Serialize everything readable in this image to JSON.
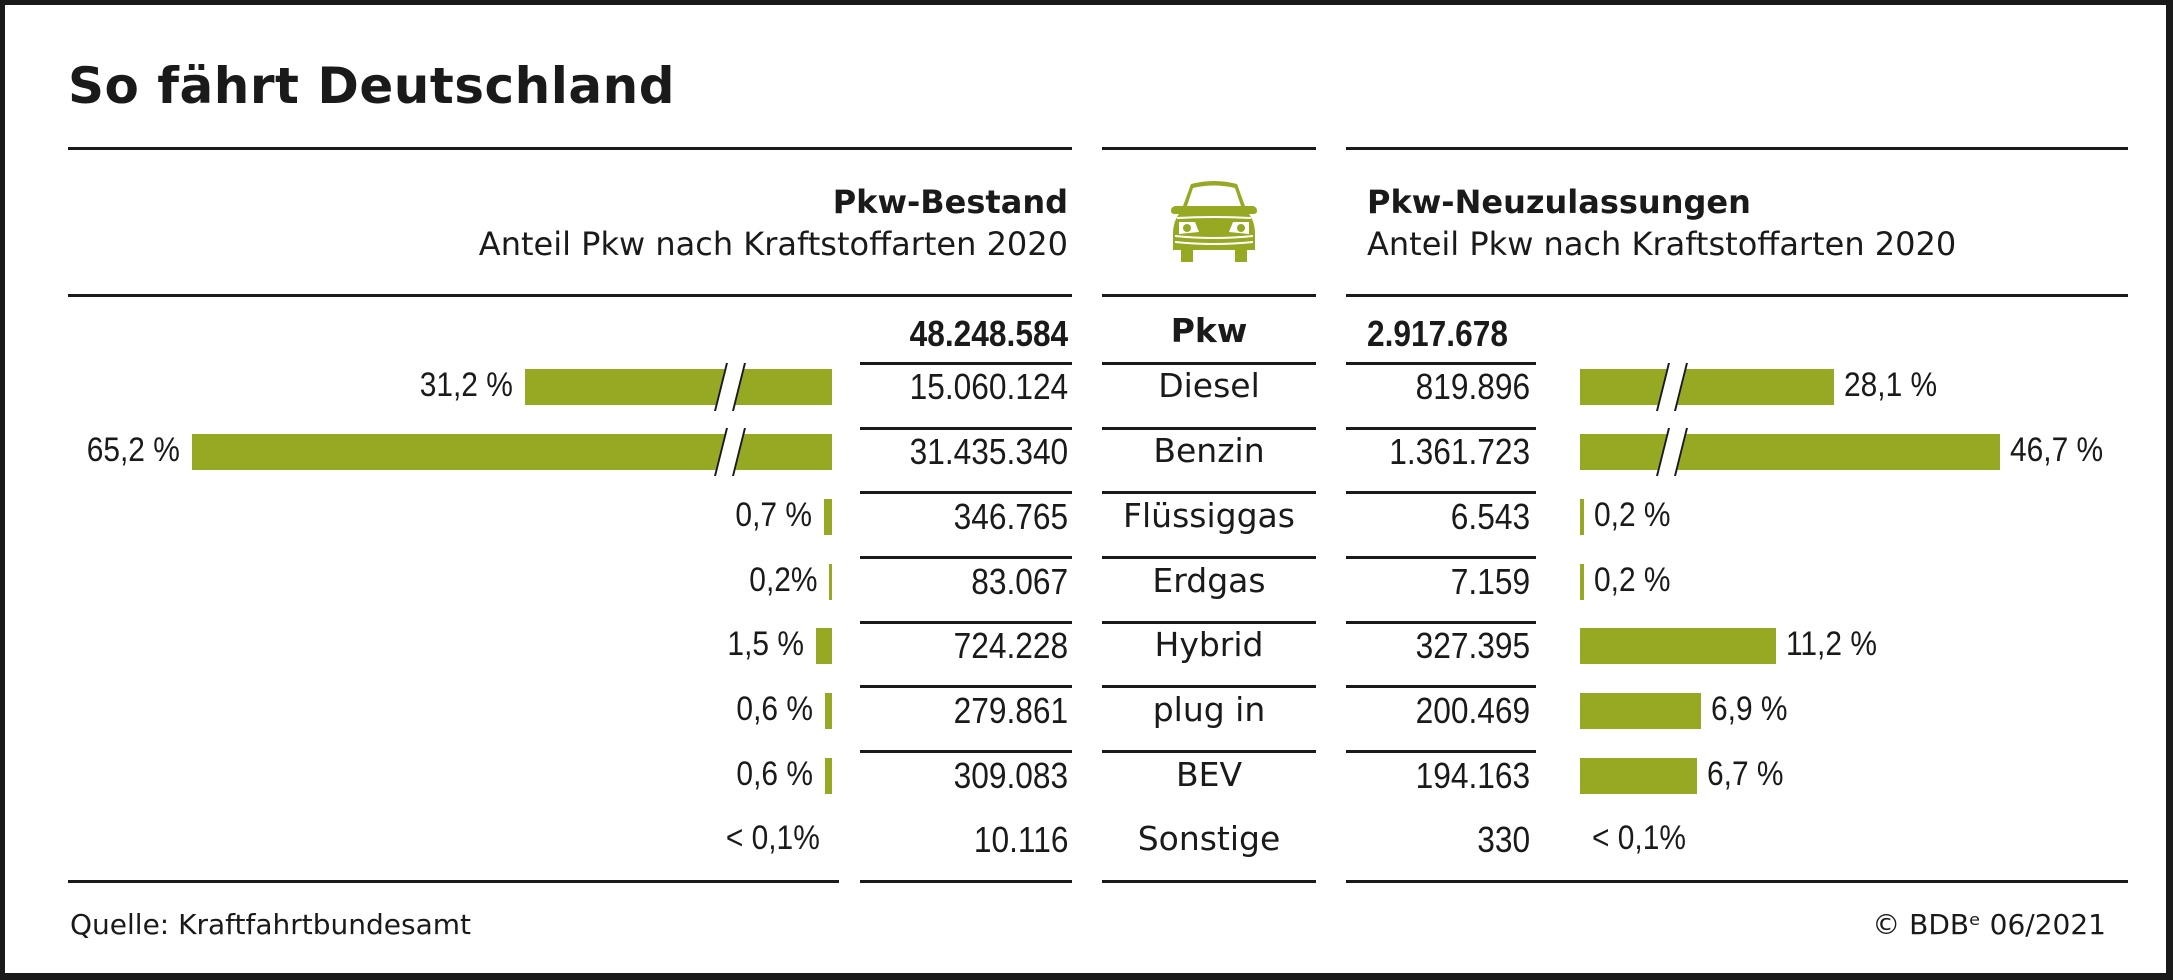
{
  "title": "So fährt Deutschland",
  "left_header": {
    "title": "Pkw-Bestand",
    "subtitle": "Anteil Pkw nach Kraftstoffarten 2020"
  },
  "right_header": {
    "title": "Pkw-Neuzulassungen",
    "subtitle": "Anteil Pkw nach Kraftstoffarten 2020"
  },
  "center_icon": "car-front-icon",
  "colors": {
    "bar": "#97a823",
    "text": "#1a1a1a",
    "frame": "#1a1a1a"
  },
  "footer": {
    "source": "Quelle: Kraftfahrtbundesamt",
    "copyright": "© BDBᵉ 06/2021"
  },
  "chart_data": {
    "type": "bar",
    "title": "So fährt Deutschland",
    "layout": "butterfly (left: Pkw-Bestand, right: Pkw-Neuzulassungen)",
    "total": {
      "label": "Pkw",
      "bestand": "48.248.584",
      "neuzulassungen": "2.917.678"
    },
    "categories": [
      "Diesel",
      "Benzin",
      "Flüssiggas",
      "Erdgas",
      "Hybrid",
      "plug in",
      "BEV",
      "Sonstige"
    ],
    "series": [
      {
        "name": "Pkw-Bestand",
        "side": "left",
        "counts": [
          "15.060.124",
          "31.435.340",
          "346.765",
          "83.067",
          "724.228",
          "279.861",
          "309.083",
          "10.116"
        ],
        "values": [
          31.2,
          65.2,
          0.7,
          0.2,
          1.5,
          0.6,
          0.6,
          0.05
        ],
        "labels": [
          "31,2 %",
          "65,2 %",
          "0,7 %",
          "0,2%",
          "1,5 %",
          "0,6 %",
          "0,6 %",
          "< 0,1%"
        ],
        "broken_axis": [
          true,
          true,
          false,
          false,
          false,
          false,
          false,
          false
        ]
      },
      {
        "name": "Pkw-Neuzulassungen",
        "side": "right",
        "counts": [
          "819.896",
          "1.361.723",
          "6.543",
          "7.159",
          "327.395",
          "200.469",
          "194.163",
          "330"
        ],
        "values": [
          28.1,
          46.7,
          0.2,
          0.2,
          11.2,
          6.9,
          6.7,
          0.01
        ],
        "labels": [
          "28,1 %",
          "46,7 %",
          "0,2 %",
          "0,2 %",
          "11,2 %",
          "6,9 %",
          "6,7 %",
          "< 0,1%"
        ],
        "broken_axis": [
          true,
          true,
          false,
          false,
          false,
          false,
          false,
          false
        ]
      }
    ],
    "unit": "%",
    "grid": false,
    "legend": "none"
  }
}
